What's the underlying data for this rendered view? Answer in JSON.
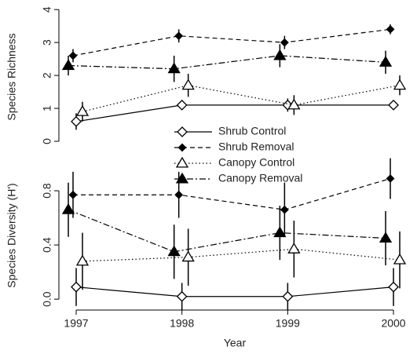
{
  "chart_data": [
    {
      "type": "line",
      "ylabel": "Species Richness",
      "x": [
        1997,
        1998,
        1999,
        2000
      ],
      "xlim": [
        1996.85,
        2000.1
      ],
      "ylim": [
        -0.2,
        4.1
      ],
      "yticks": [
        0,
        1,
        2,
        3,
        4
      ],
      "series": [
        {
          "name": "Shrub Control",
          "color": "#000000",
          "marker": "open-diamond",
          "dash": "solid",
          "values": [
            0.6,
            1.1,
            1.1,
            1.1
          ],
          "errors": [
            0.25,
            0.1,
            0.2,
            0.1
          ]
        },
        {
          "name": "Shrub Removal",
          "color": "#000000",
          "marker": "diamond",
          "dash": "dashed",
          "values": [
            2.6,
            3.2,
            3.0,
            3.4
          ],
          "errors": [
            0.2,
            0.2,
            0.2,
            0.15
          ]
        },
        {
          "name": "Canopy Control",
          "color": "#000000",
          "marker": "open-triangle",
          "dash": "dotted",
          "values": [
            0.9,
            1.7,
            1.1,
            1.7
          ],
          "errors": [
            0.3,
            0.35,
            0.3,
            0.3
          ]
        },
        {
          "name": "Canopy Removal",
          "color": "#000000",
          "marker": "triangle",
          "dash": "dashdot",
          "values": [
            2.3,
            2.2,
            2.6,
            2.4
          ],
          "errors": [
            0.3,
            0.4,
            0.35,
            0.35
          ]
        }
      ],
      "legend": "center"
    },
    {
      "type": "line",
      "ylabel": "Species Diversity (H')",
      "xlabel": "Year",
      "x": [
        1997,
        1998,
        1999,
        2000
      ],
      "xlim": [
        1996.85,
        2000.1
      ],
      "ylim": [
        -0.08,
        1.0
      ],
      "xticks": [
        1997,
        1998,
        1999,
        2000
      ],
      "yticks": [
        {
          "value": 0,
          "label": "0.0"
        },
        0.4,
        0.8
      ],
      "series": [
        {
          "color": "#000000",
          "marker": "open-diamond",
          "dash": "solid",
          "values": [
            0.09,
            0.02,
            0.02,
            0.09
          ],
          "errors": [
            0.14,
            0.1,
            0.1,
            0.14
          ]
        },
        {
          "color": "#000000",
          "marker": "diamond",
          "dash": "dashed",
          "values": [
            0.77,
            0.77,
            0.66,
            0.89
          ],
          "errors": [
            0.17,
            0.17,
            0.2,
            0.15
          ]
        },
        {
          "color": "#000000",
          "marker": "open-triangle",
          "dash": "dotted",
          "values": [
            0.28,
            0.31,
            0.37,
            0.29
          ],
          "errors": [
            0.21,
            0.21,
            0.21,
            0.21
          ]
        },
        {
          "color": "#000000",
          "marker": "triangle",
          "dash": "dashdot",
          "values": [
            0.66,
            0.35,
            0.49,
            0.45
          ],
          "errors": [
            0.2,
            0.2,
            0.2,
            0.2
          ]
        }
      ]
    }
  ]
}
